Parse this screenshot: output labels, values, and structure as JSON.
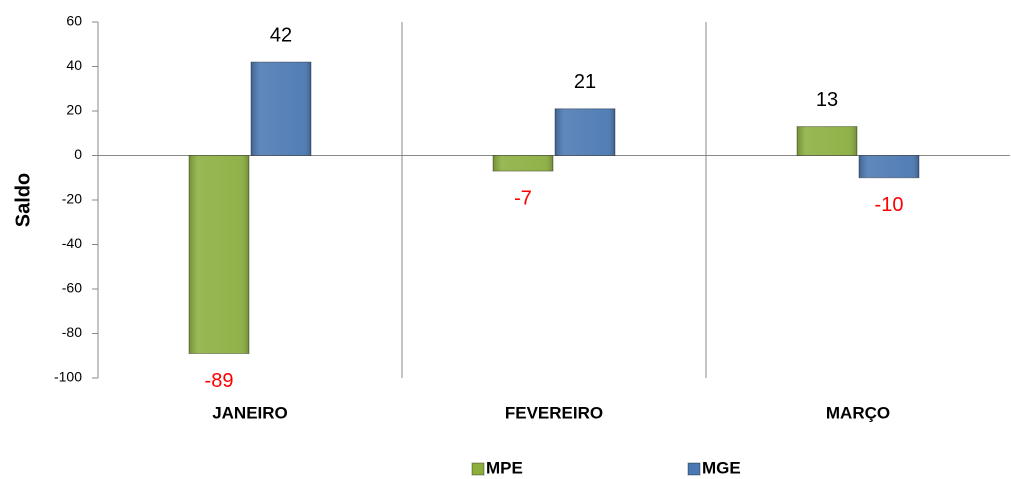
{
  "chart_data": {
    "type": "bar",
    "y_axis_label": "Saldo",
    "categories": [
      "JANEIRO",
      "FEVEREIRO",
      "MARÇO"
    ],
    "series": [
      {
        "name": "MPE",
        "color": "#8bae3f",
        "values": [
          -89,
          -7,
          13
        ]
      },
      {
        "name": "MGE",
        "color": "#4a78b2",
        "values": [
          42,
          21,
          -10
        ]
      }
    ],
    "ylim": [
      -100,
      60
    ],
    "yticks": [
      -100,
      -80,
      -60,
      -40,
      -20,
      0,
      20,
      40,
      60
    ],
    "negative_label_color": "#ff0000",
    "label_color": "#000000",
    "legend": "bottom"
  }
}
